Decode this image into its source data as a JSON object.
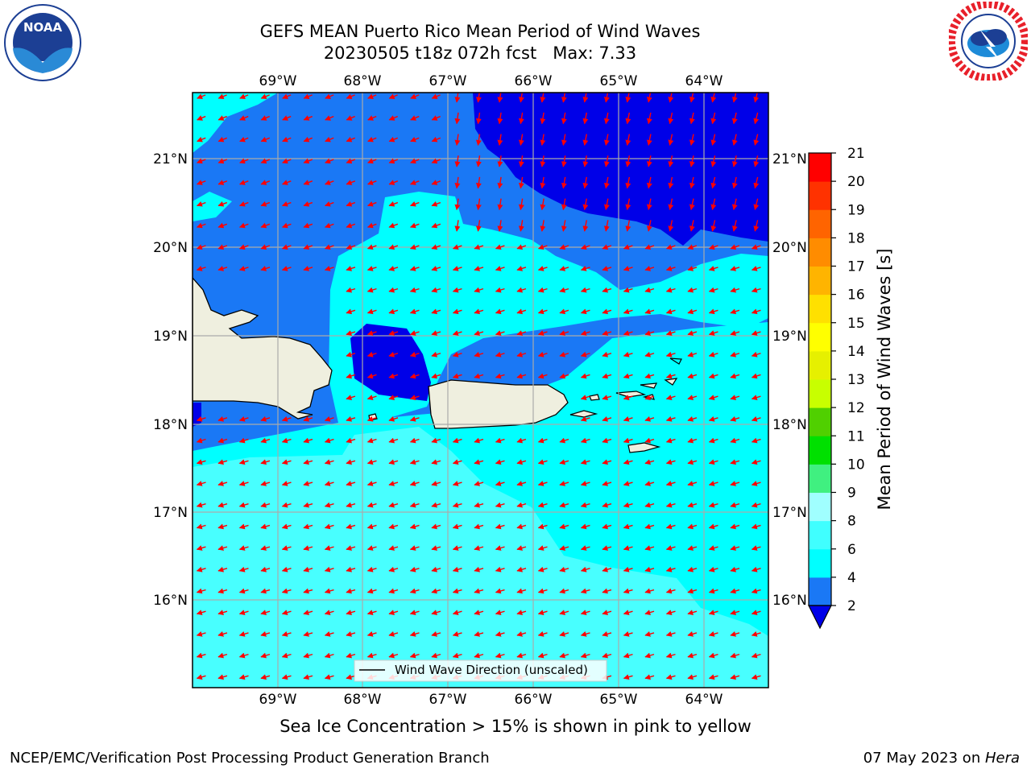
{
  "header": {
    "title_line1": "GEFS MEAN Puerto Rico Mean Period of Wind Waves",
    "title_line2": "20230505 t18z 072h fcst   Max: 7.33"
  },
  "logos": {
    "left": "NOAA",
    "right": "NATIONAL WEATHER SERVICE"
  },
  "map": {
    "lon_labels": [
      "69°W",
      "68°W",
      "67°W",
      "66°W",
      "65°W",
      "64°W"
    ],
    "lat_labels": [
      "21°N",
      "20°N",
      "19°N",
      "18°N",
      "17°N",
      "16°N"
    ],
    "legend_label": "Wind Wave Direction (unscaled)"
  },
  "colorbar": {
    "label": "Mean Period of Wind Waves [s]",
    "ticks": [
      "2",
      "4",
      "6",
      "8",
      "9",
      "10",
      "11",
      "12",
      "13",
      "14",
      "15",
      "16",
      "17",
      "18",
      "19",
      "20",
      "21"
    ],
    "colors": [
      "#1a78f5",
      "#00ffff",
      "#40ffff",
      "#a0ffff",
      "#40f080",
      "#00e000",
      "#50d000",
      "#c8ff00",
      "#e6f000",
      "#ffff00",
      "#ffe000",
      "#ffb400",
      "#ff8c00",
      "#ff6400",
      "#ff3200",
      "#ff0000"
    ],
    "underflow_color": "#0000e8"
  },
  "field_colors": {
    "ocean_2_4": "#1a78f5",
    "ocean_4_6": "#00ffff",
    "ocean_6_8": "#48ffff",
    "ocean_lt_2": "#0000e8",
    "land": "#efefdf",
    "arrows": "#ff0000"
  },
  "footer": {
    "note": "Sea Ice Concentration > 15% is shown in pink to yellow",
    "left": "NCEP/EMC/Verification Post Processing Product Generation Branch",
    "right_prefix": "07 May 2023 on ",
    "right_italic": "Hera"
  }
}
